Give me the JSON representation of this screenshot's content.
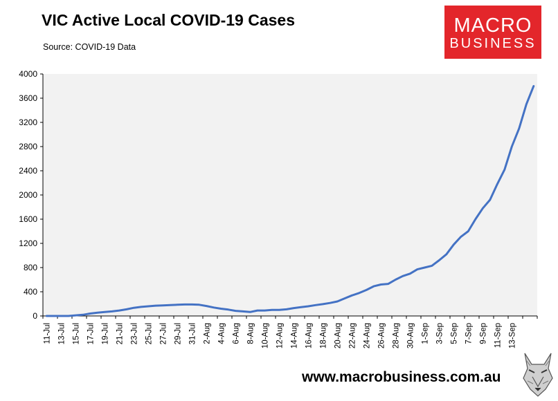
{
  "header": {
    "title": "VIC Active Local COVID-19 Cases",
    "subtitle": "Source: COVID-19 Data"
  },
  "logo": {
    "line1": "MACRO",
    "line2": "BUSINESS",
    "background": "#e3262b"
  },
  "footer": {
    "url": "www.macrobusiness.com.au",
    "mascot_icon": "wolf-head-icon"
  },
  "colors": {
    "line": "#4472c4",
    "plot_background": "#f2f2f2",
    "axis": "#000000"
  },
  "chart_data": {
    "type": "line",
    "title": "VIC Active Local COVID-19 Cases",
    "subtitle": "Source: COVID-19 Data",
    "xlabel": "",
    "ylabel": "",
    "ylim": [
      0,
      4000
    ],
    "yticks": [
      0,
      400,
      800,
      1200,
      1600,
      2000,
      2400,
      2800,
      3200,
      3600,
      4000
    ],
    "xtick_labels": [
      "11-Jul",
      "13-Jul",
      "15-Jul",
      "17-Jul",
      "19-Jul",
      "21-Jul",
      "23-Jul",
      "25-Jul",
      "27-Jul",
      "29-Jul",
      "31-Jul",
      "2-Aug",
      "4-Aug",
      "6-Aug",
      "8-Aug",
      "10-Aug",
      "12-Aug",
      "14-Aug",
      "16-Aug",
      "18-Aug",
      "20-Aug",
      "22-Aug",
      "24-Aug",
      "26-Aug",
      "28-Aug",
      "30-Aug",
      "1-Sep",
      "3-Sep",
      "5-Sep",
      "7-Sep",
      "9-Sep",
      "11-Sep",
      "13-Sep"
    ],
    "grid": false,
    "legend": "none",
    "series": [
      {
        "values": [
          0,
          0,
          0,
          0,
          10,
          20,
          40,
          55,
          65,
          75,
          90,
          110,
          135,
          150,
          160,
          170,
          175,
          180,
          185,
          190,
          190,
          185,
          165,
          140,
          120,
          105,
          85,
          75,
          65,
          90,
          90,
          100,
          100,
          110,
          130,
          145,
          160,
          180,
          195,
          215,
          240,
          290,
          340,
          380,
          430,
          490,
          520,
          530,
          600,
          660,
          700,
          770,
          800,
          830,
          920,
          1020,
          1180,
          1310,
          1400,
          1600,
          1780,
          1920,
          2180,
          2420,
          2800,
          3100,
          3500,
          3800
        ]
      }
    ]
  }
}
